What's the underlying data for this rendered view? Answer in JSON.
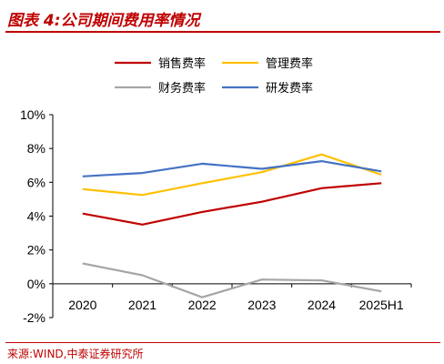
{
  "header": {
    "title": "图表 4:公司期间费用率情况"
  },
  "footer": {
    "source": "来源:WIND,中泰证券研究所"
  },
  "chart_data": {
    "type": "line",
    "categories": [
      "2020",
      "2021",
      "2022",
      "2023",
      "2024",
      "2025H1"
    ],
    "ylim": [
      -2,
      10
    ],
    "yticks": [
      "-2%",
      "0%",
      "2%",
      "4%",
      "6%",
      "8%",
      "10%"
    ],
    "ytick_values": [
      -2,
      0,
      2,
      4,
      6,
      8,
      10
    ],
    "grid": false,
    "legend_position": "top",
    "series": [
      {
        "name": "销售费率",
        "color": "#c00000",
        "values": [
          4.15,
          3.5,
          4.25,
          4.85,
          5.65,
          5.95
        ]
      },
      {
        "name": "管理费率",
        "color": "#ffc000",
        "values": [
          5.6,
          5.25,
          5.95,
          6.6,
          7.65,
          6.45
        ]
      },
      {
        "name": "财务费率",
        "color": "#a6a6a6",
        "values": [
          1.2,
          0.5,
          -0.8,
          0.25,
          0.2,
          -0.45
        ]
      },
      {
        "name": "研发费率",
        "color": "#4472c4",
        "values": [
          6.35,
          6.55,
          7.1,
          6.8,
          7.25,
          6.65
        ]
      }
    ]
  }
}
